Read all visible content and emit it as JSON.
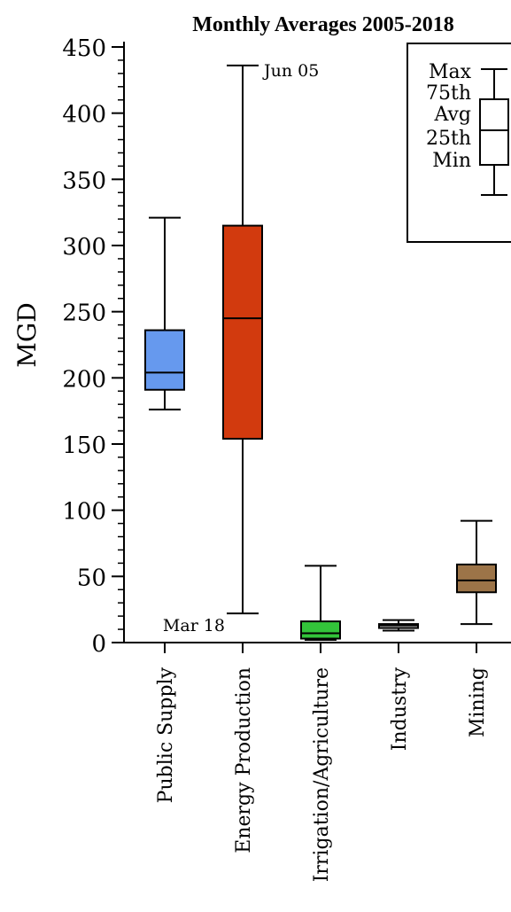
{
  "chart_data": {
    "type": "boxplot",
    "title": "Monthly Averages 2005-2018",
    "ylabel": "MGD",
    "xlabel": "",
    "ylim": [
      0,
      450
    ],
    "yticks": [
      0,
      50,
      100,
      150,
      200,
      250,
      300,
      350,
      400,
      450
    ],
    "grid": false,
    "categories": [
      "Public Supply",
      "Energy Production",
      "Irrigation/Agriculture",
      "Industry",
      "Mining"
    ],
    "colors": [
      "#6699ee",
      "#d23a0e",
      "#33c43a",
      "#c4c4c4",
      "#9c7448"
    ],
    "boxes": [
      {
        "name": "Public Supply",
        "min": 176,
        "q1": 191,
        "avg": 204,
        "q3": 236,
        "max": 321
      },
      {
        "name": "Energy Production",
        "min": 22,
        "q1": 154,
        "avg": 245,
        "q3": 315,
        "max": 436
      },
      {
        "name": "Irrigation/Agriculture",
        "min": 2,
        "q1": 3,
        "avg": 7,
        "q3": 16,
        "max": 58
      },
      {
        "name": "Industry",
        "min": 9,
        "q1": 11,
        "avg": 13,
        "q3": 14,
        "max": 17
      },
      {
        "name": "Mining",
        "min": 14,
        "q1": 38,
        "avg": 47,
        "q3": 59,
        "max": 92
      }
    ],
    "annotations": [
      {
        "text": "Jun 05",
        "category": "Energy Production",
        "value": 436
      },
      {
        "text": "Mar 18",
        "category": "Energy Production",
        "value": 22
      }
    ],
    "legend": {
      "position": "top-right",
      "labels": [
        "Max",
        "75th",
        "Avg",
        "25th",
        "Min"
      ]
    }
  }
}
